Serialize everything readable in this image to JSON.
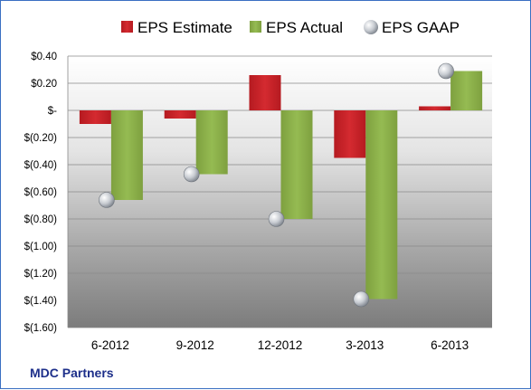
{
  "company_label": "MDC Partners",
  "colors": {
    "estimate": "#cc2229",
    "actual": "#8cb24a",
    "gaap": "#c8ccd2",
    "brand": "#1d2f8a"
  },
  "chart_data": {
    "type": "bar",
    "categories": [
      "6-2012",
      "9-2012",
      "12-2012",
      "3-2013",
      "6-2013"
    ],
    "series": [
      {
        "name": "EPS Estimate",
        "kind": "bar",
        "values": [
          -0.1,
          -0.06,
          0.26,
          -0.35,
          0.03
        ]
      },
      {
        "name": "EPS Actual",
        "kind": "bar",
        "values": [
          -0.66,
          -0.47,
          -0.8,
          -1.39,
          0.29
        ]
      },
      {
        "name": "EPS GAAP",
        "kind": "marker",
        "values": [
          -0.66,
          -0.47,
          -0.8,
          -1.39,
          0.29
        ]
      }
    ],
    "ylim": [
      -1.6,
      0.4
    ],
    "yticks": [
      {
        "value": 0.4,
        "label": "$0.40"
      },
      {
        "value": 0.2,
        "label": "$0.20"
      },
      {
        "value": 0.0,
        "label": "$-"
      },
      {
        "value": -0.2,
        "label": "$(0.20)"
      },
      {
        "value": -0.4,
        "label": "$(0.40)"
      },
      {
        "value": -0.6,
        "label": "$(0.60)"
      },
      {
        "value": -0.8,
        "label": "$(0.80)"
      },
      {
        "value": -1.0,
        "label": "$(1.00)"
      },
      {
        "value": -1.2,
        "label": "$(1.20)"
      },
      {
        "value": -1.4,
        "label": "$(1.40)"
      },
      {
        "value": -1.6,
        "label": "$(1.60)"
      }
    ],
    "grid": true,
    "legend_position": "top"
  }
}
